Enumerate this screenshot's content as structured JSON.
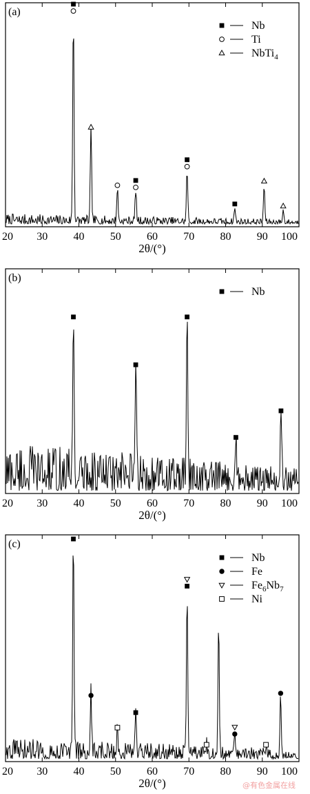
{
  "watermark": "@有色金属在线",
  "chart_data": [
    {
      "type": "line",
      "panel_label": "(a)",
      "xlabel": "2θ/(°)",
      "xlim": [
        20,
        100
      ],
      "x_ticks": [
        20,
        30,
        40,
        50,
        60,
        70,
        80,
        90,
        100
      ],
      "y_scale": "arbitrary intensity",
      "noise_level": 0.05,
      "legend": {
        "placement": "top-right",
        "entries": [
          {
            "marker": "filled-square",
            "label": "Nb"
          },
          {
            "marker": "open-circle",
            "label": "Ti"
          },
          {
            "marker": "open-triangle",
            "label": "NbTi",
            "subscript": "4"
          }
        ]
      },
      "peaks": [
        {
          "x": 38.5,
          "height": 1.0,
          "markers": [
            "filled-square",
            "open-circle"
          ]
        },
        {
          "x": 43.3,
          "height": 0.44,
          "markers": [
            "open-triangle"
          ]
        },
        {
          "x": 50.5,
          "height": 0.16,
          "markers": [
            "open-circle"
          ]
        },
        {
          "x": 55.5,
          "height": 0.15,
          "markers": [
            "filled-square",
            "open-circle"
          ]
        },
        {
          "x": 69.5,
          "height": 0.25,
          "markers": [
            "filled-square",
            "open-circle"
          ]
        },
        {
          "x": 82.5,
          "height": 0.07,
          "markers": [
            "filled-square"
          ]
        },
        {
          "x": 90.5,
          "height": 0.18,
          "markers": [
            "open-triangle"
          ]
        },
        {
          "x": 95.7,
          "height": 0.06,
          "markers": [
            "open-triangle"
          ]
        }
      ]
    },
    {
      "type": "line",
      "panel_label": "(b)",
      "xlabel": "2θ/(°)",
      "xlim": [
        20,
        100
      ],
      "x_ticks": [
        20,
        30,
        40,
        50,
        60,
        70,
        80,
        90,
        100
      ],
      "y_scale": "arbitrary intensity",
      "noise_level": 0.28,
      "legend": {
        "placement": "top-right",
        "entries": [
          {
            "marker": "filled-square",
            "label": "Nb"
          }
        ]
      },
      "peaks": [
        {
          "x": 38.5,
          "height": 0.95,
          "markers": [
            "filled-square"
          ]
        },
        {
          "x": 55.5,
          "height": 0.68,
          "markers": [
            "filled-square"
          ]
        },
        {
          "x": 69.5,
          "height": 0.95,
          "markers": [
            "filled-square"
          ]
        },
        {
          "x": 82.8,
          "height": 0.27,
          "markers": [
            "filled-square"
          ]
        },
        {
          "x": 95.1,
          "height": 0.42,
          "markers": [
            "filled-square"
          ]
        }
      ]
    },
    {
      "type": "line",
      "panel_label": "(c)",
      "xlabel": "2θ/(°)",
      "xlim": [
        20,
        100
      ],
      "x_ticks": [
        20,
        30,
        40,
        50,
        60,
        70,
        80,
        90,
        100
      ],
      "y_scale": "arbitrary intensity",
      "noise_level": 0.1,
      "legend": {
        "placement": "top-right",
        "entries": [
          {
            "marker": "filled-square",
            "label": "Nb"
          },
          {
            "marker": "filled-circle",
            "label": "Fe"
          },
          {
            "marker": "open-triangle-down",
            "label": "Fe",
            "subscript": "6",
            "suffix": "Nb",
            "subscript2": "7"
          },
          {
            "marker": "open-square",
            "label": "Ni"
          }
        ]
      },
      "peaks": [
        {
          "x": 38.5,
          "height": 1.0,
          "markers": [
            "filled-square"
          ]
        },
        {
          "x": 43.3,
          "height": 0.27,
          "markers": [
            "filled-circle"
          ]
        },
        {
          "x": 50.5,
          "height": 0.12,
          "markers": [
            "open-square"
          ]
        },
        {
          "x": 55.5,
          "height": 0.19,
          "markers": [
            "filled-square"
          ]
        },
        {
          "x": 69.5,
          "height": 0.78,
          "markers": [
            "open-triangle-down",
            "filled-square"
          ]
        },
        {
          "x": 74.8,
          "height": 0.04,
          "markers": [
            "open-square"
          ]
        },
        {
          "x": 78.1,
          "height": 0.63,
          "markers": []
        },
        {
          "x": 82.5,
          "height": 0.09,
          "markers": [
            "open-triangle-down",
            "filled-circle"
          ]
        },
        {
          "x": 91.0,
          "height": 0.04,
          "markers": [
            "open-square"
          ]
        },
        {
          "x": 95.0,
          "height": 0.28,
          "markers": [
            "filled-circle"
          ]
        }
      ]
    }
  ]
}
